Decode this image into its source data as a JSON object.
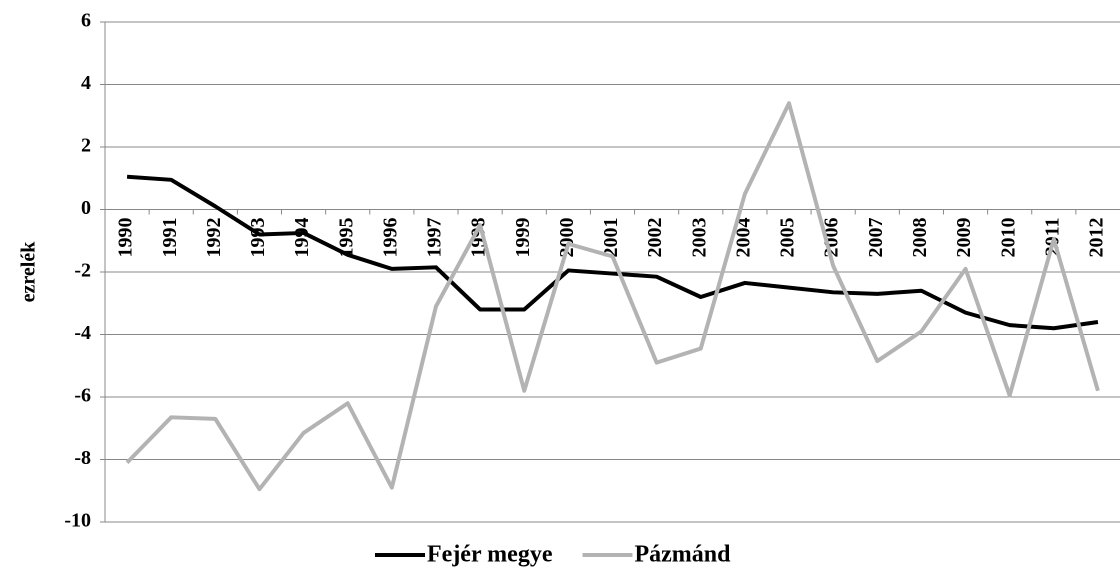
{
  "chart_data": {
    "type": "line",
    "y_label": "ezrelék",
    "categories": [
      "1990",
      "1991",
      "1992",
      "1993",
      "1994",
      "1995",
      "1996",
      "1997",
      "1998",
      "1999",
      "2000",
      "2001",
      "2002",
      "2003",
      "2004",
      "2005",
      "2006",
      "2007",
      "2008",
      "2009",
      "2010",
      "2011",
      "2012"
    ],
    "series": [
      {
        "name": "Fejér megye",
        "color": "#000000",
        "values": [
          1.05,
          0.95,
          0.1,
          -0.8,
          -0.75,
          -1.45,
          -1.9,
          -1.85,
          -3.2,
          -3.2,
          -1.95,
          -2.05,
          -2.15,
          -2.8,
          -2.35,
          -2.5,
          -2.65,
          -2.7,
          -2.6,
          -3.3,
          -3.7,
          -3.8,
          -3.6
        ]
      },
      {
        "name": "Pázmánd",
        "color": "#b3b3b3",
        "values": [
          -8.1,
          -6.65,
          -6.7,
          -8.95,
          -7.15,
          -6.2,
          -8.9,
          -3.1,
          -0.5,
          -5.8,
          -1.1,
          -1.5,
          -4.9,
          -4.45,
          0.5,
          3.4,
          -1.8,
          -4.85,
          -3.9,
          -1.9,
          -5.95,
          -0.95,
          -5.8
        ]
      }
    ],
    "ylim": [
      -10,
      6
    ],
    "yticks": [
      -10,
      -8,
      -6,
      -4,
      -2,
      0,
      2,
      4,
      6
    ],
    "grid": true,
    "legend": "bottom"
  }
}
